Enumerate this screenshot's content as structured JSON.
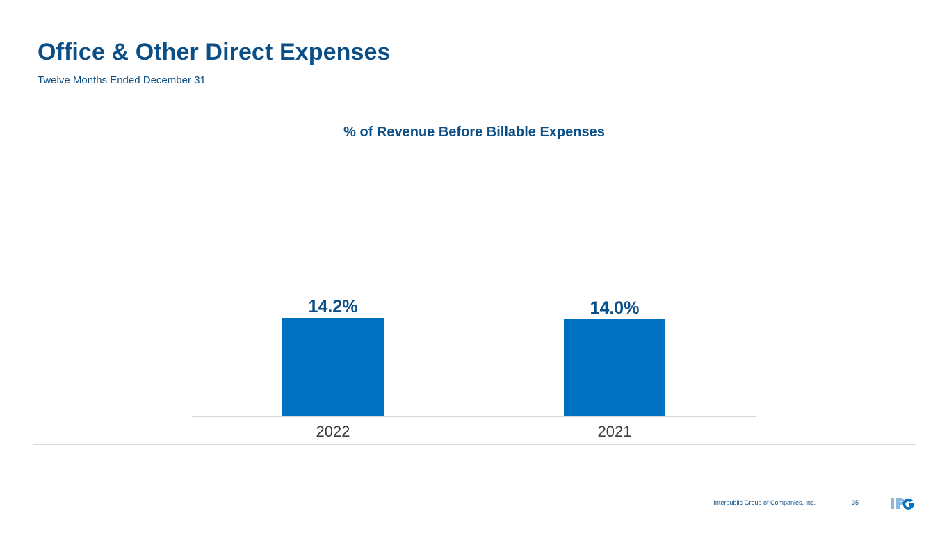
{
  "header": {
    "title": "Office & Other Direct Expenses",
    "subtitle": "Twelve Months Ended December 31"
  },
  "chart_data": {
    "type": "bar",
    "title": "% of Revenue Before Billable Expenses",
    "categories": [
      "2022",
      "2021"
    ],
    "values": [
      14.2,
      14.0
    ],
    "value_labels": [
      "14.2%",
      "14.0%"
    ],
    "xlabel": "",
    "ylabel": "",
    "ylim": [
      0,
      27
    ],
    "grid": false,
    "legend": "none",
    "bar_color": "#0070c0"
  },
  "footer": {
    "company": "Interpublic Group of Companies, Inc.",
    "page_number": "35",
    "logo_text": "IPG"
  },
  "colors": {
    "title": "#0b4f86",
    "bar": "#0070c0",
    "logo_light": "#8bb6df",
    "logo_dark": "#0070c0"
  }
}
